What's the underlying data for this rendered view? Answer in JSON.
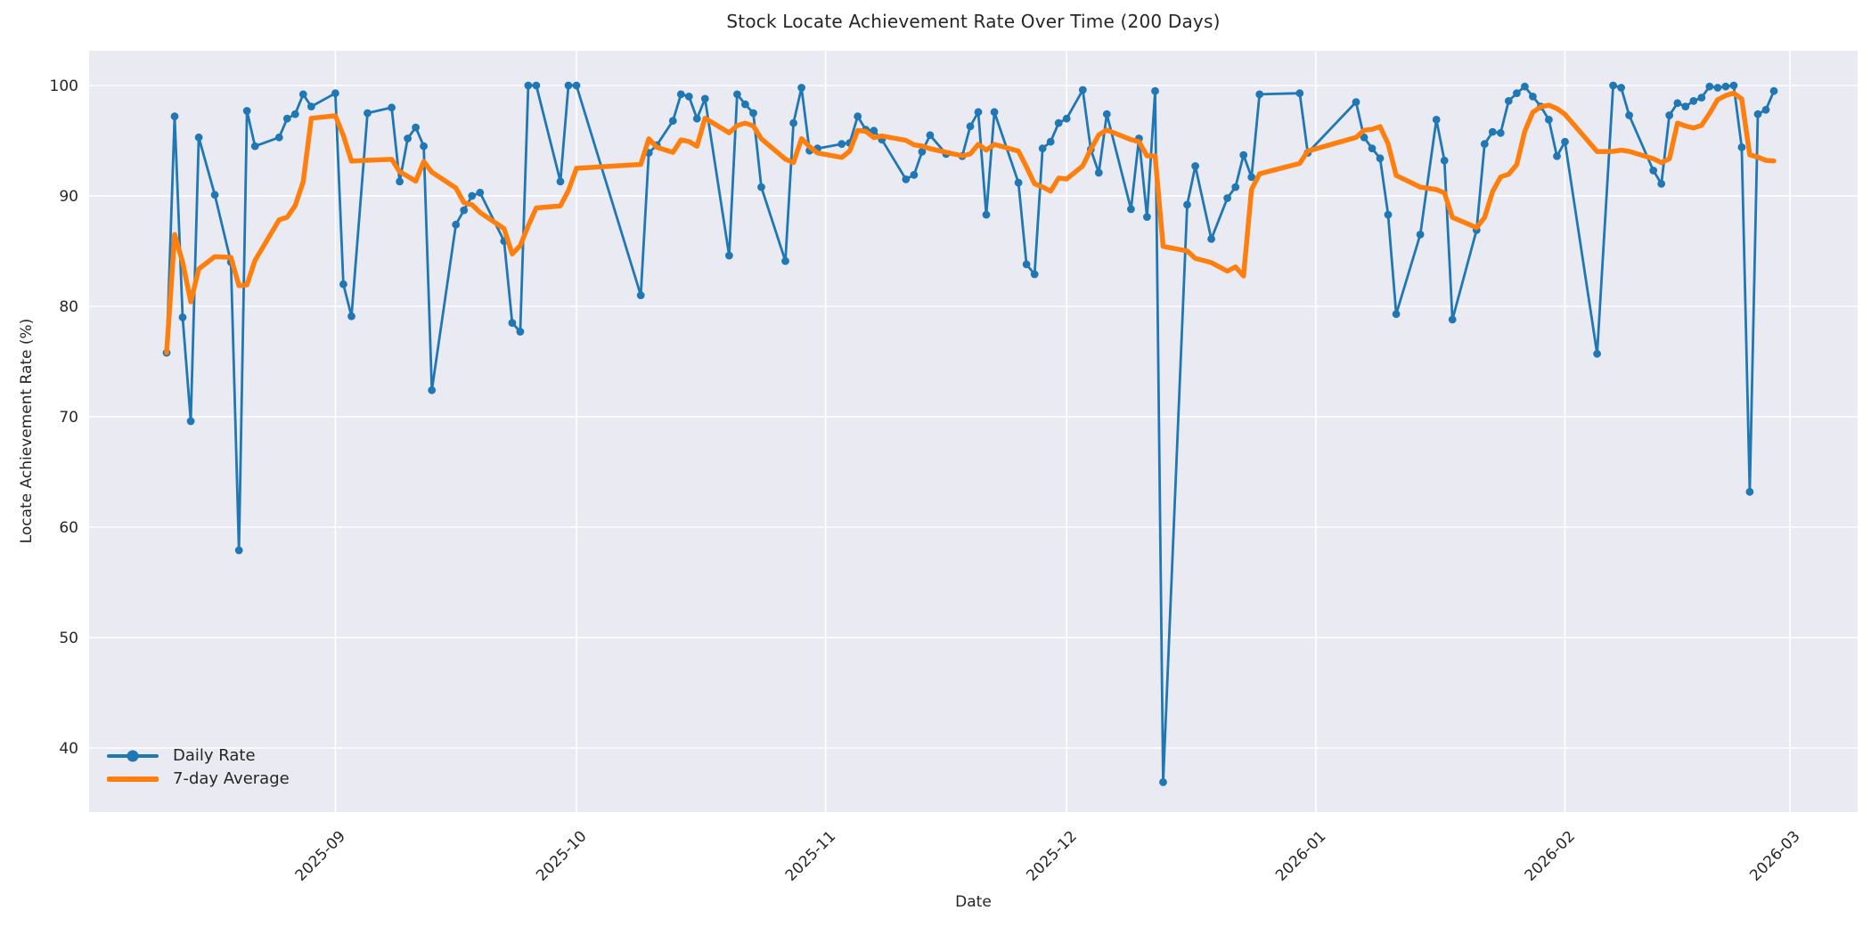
{
  "chart_data": {
    "type": "line",
    "title": "Stock Locate Achievement Rate Over Time (200 Days)",
    "xlabel": "Date",
    "ylabel": "Locate Achievement Rate (%)",
    "grid": true,
    "legend_position": "lower left",
    "plot_background": "#eaeaf2",
    "grid_color": "#ffffff",
    "text_color": "#262626",
    "ylim": [
      34.4,
      103.1
    ],
    "y_ticks": [
      40,
      50,
      60,
      70,
      80,
      90,
      100
    ],
    "x_ticks": [
      {
        "label": "2025-09",
        "date": "2025-09-01"
      },
      {
        "label": "2025-10",
        "date": "2025-10-01"
      },
      {
        "label": "2025-11",
        "date": "2025-11-01"
      },
      {
        "label": "2025-12",
        "date": "2025-12-01"
      },
      {
        "label": "2026-01",
        "date": "2026-01-01"
      },
      {
        "label": "2026-02",
        "date": "2026-02-01"
      },
      {
        "label": "2026-03",
        "date": "2026-03-01"
      }
    ],
    "series": [
      {
        "name": "Daily Rate",
        "color": "#1f77b4",
        "style": "line+markers",
        "dates": [
          "2025-08-11",
          "2025-08-12",
          "2025-08-13",
          "2025-08-14",
          "2025-08-15",
          "2025-08-17",
          "2025-08-19",
          "2025-08-20",
          "2025-08-21",
          "2025-08-22",
          "2025-08-25",
          "2025-08-26",
          "2025-08-27",
          "2025-08-28",
          "2025-08-29",
          "2025-09-01",
          "2025-09-02",
          "2025-09-03",
          "2025-09-05",
          "2025-09-08",
          "2025-09-09",
          "2025-09-10",
          "2025-09-11",
          "2025-09-12",
          "2025-09-13",
          "2025-09-16",
          "2025-09-17",
          "2025-09-18",
          "2025-09-19",
          "2025-09-22",
          "2025-09-23",
          "2025-09-24",
          "2025-09-25",
          "2025-09-26",
          "2025-09-29",
          "2025-09-30",
          "2025-10-01",
          "2025-10-09",
          "2025-10-10",
          "2025-10-11",
          "2025-10-13",
          "2025-10-14",
          "2025-10-15",
          "2025-10-16",
          "2025-10-17",
          "2025-10-20",
          "2025-10-21",
          "2025-10-22",
          "2025-10-23",
          "2025-10-24",
          "2025-10-27",
          "2025-10-28",
          "2025-10-29",
          "2025-10-30",
          "2025-10-31",
          "2025-11-03",
          "2025-11-04",
          "2025-11-05",
          "2025-11-06",
          "2025-11-07",
          "2025-11-08",
          "2025-11-11",
          "2025-11-12",
          "2025-11-13",
          "2025-11-14",
          "2025-11-16",
          "2025-11-18",
          "2025-11-19",
          "2025-11-20",
          "2025-11-21",
          "2025-11-22",
          "2025-11-25",
          "2025-11-26",
          "2025-11-27",
          "2025-11-28",
          "2025-11-29",
          "2025-11-30",
          "2025-12-01",
          "2025-12-03",
          "2025-12-04",
          "2025-12-05",
          "2025-12-06",
          "2025-12-09",
          "2025-12-10",
          "2025-12-11",
          "2025-12-12",
          "2025-12-13",
          "2025-12-16",
          "2025-12-17",
          "2025-12-19",
          "2025-12-21",
          "2025-12-22",
          "2025-12-23",
          "2025-12-24",
          "2025-12-25",
          "2025-12-30",
          "2025-12-31",
          "2026-01-06",
          "2026-01-07",
          "2026-01-08",
          "2026-01-09",
          "2026-01-10",
          "2026-01-11",
          "2026-01-14",
          "2026-01-16",
          "2026-01-17",
          "2026-01-18",
          "2026-01-21",
          "2026-01-22",
          "2026-01-23",
          "2026-01-24",
          "2026-01-25",
          "2026-01-26",
          "2026-01-27",
          "2026-01-28",
          "2026-01-29",
          "2026-01-30",
          "2026-01-31",
          "2026-02-01",
          "2026-02-05",
          "2026-02-07",
          "2026-02-08",
          "2026-02-09",
          "2026-02-12",
          "2026-02-13",
          "2026-02-14",
          "2026-02-15",
          "2026-02-16",
          "2026-02-17",
          "2026-02-18",
          "2026-02-19",
          "2026-02-20",
          "2026-02-21",
          "2026-02-22",
          "2026-02-23",
          "2026-02-24",
          "2026-02-25",
          "2026-02-26",
          "2026-02-27"
        ],
        "values": [
          75.8,
          97.2,
          79.0,
          69.6,
          95.3,
          90.1,
          84.0,
          57.9,
          97.7,
          94.5,
          95.3,
          97.0,
          97.4,
          99.2,
          98.1,
          99.3,
          82.0,
          79.1,
          97.5,
          98.0,
          91.3,
          95.2,
          96.2,
          94.5,
          72.4,
          87.4,
          88.7,
          90.0,
          90.3,
          85.9,
          78.5,
          77.7,
          100.0,
          100.0,
          91.3,
          100.0,
          100.0,
          81.0,
          93.9,
          94.6,
          96.8,
          99.2,
          99.0,
          97.0,
          98.8,
          84.6,
          99.2,
          98.3,
          97.5,
          90.8,
          84.1,
          96.6,
          99.8,
          94.1,
          94.3,
          94.7,
          94.8,
          97.2,
          96.0,
          95.9,
          95.1,
          91.5,
          91.9,
          94.0,
          95.5,
          93.8,
          93.6,
          96.3,
          97.6,
          88.3,
          97.6,
          91.2,
          83.8,
          82.9,
          94.3,
          94.9,
          96.6,
          97.0,
          99.6,
          94.2,
          92.1,
          97.4,
          88.8,
          95.2,
          88.1,
          99.5,
          36.9,
          89.2,
          92.7,
          86.1,
          89.8,
          90.8,
          93.7,
          91.7,
          99.2,
          99.3,
          93.9,
          98.5,
          95.3,
          94.3,
          93.4,
          88.3,
          79.3,
          86.5,
          96.9,
          93.2,
          78.8,
          86.9,
          94.7,
          95.8,
          95.7,
          98.6,
          99.3,
          99.9,
          99.0,
          98.1,
          96.9,
          93.6,
          94.9,
          75.7,
          100.0,
          99.8,
          97.3,
          92.3,
          91.1,
          97.3,
          98.4,
          98.1,
          98.6,
          98.9,
          99.9,
          99.8,
          99.9,
          100.0,
          94.4,
          63.2,
          97.4,
          97.8,
          99.5
        ]
      },
      {
        "name": "7-day Average",
        "color": "#ff7f0e",
        "style": "line",
        "derived": "rolling_mean_of_daily_rate",
        "window": 7
      }
    ]
  }
}
